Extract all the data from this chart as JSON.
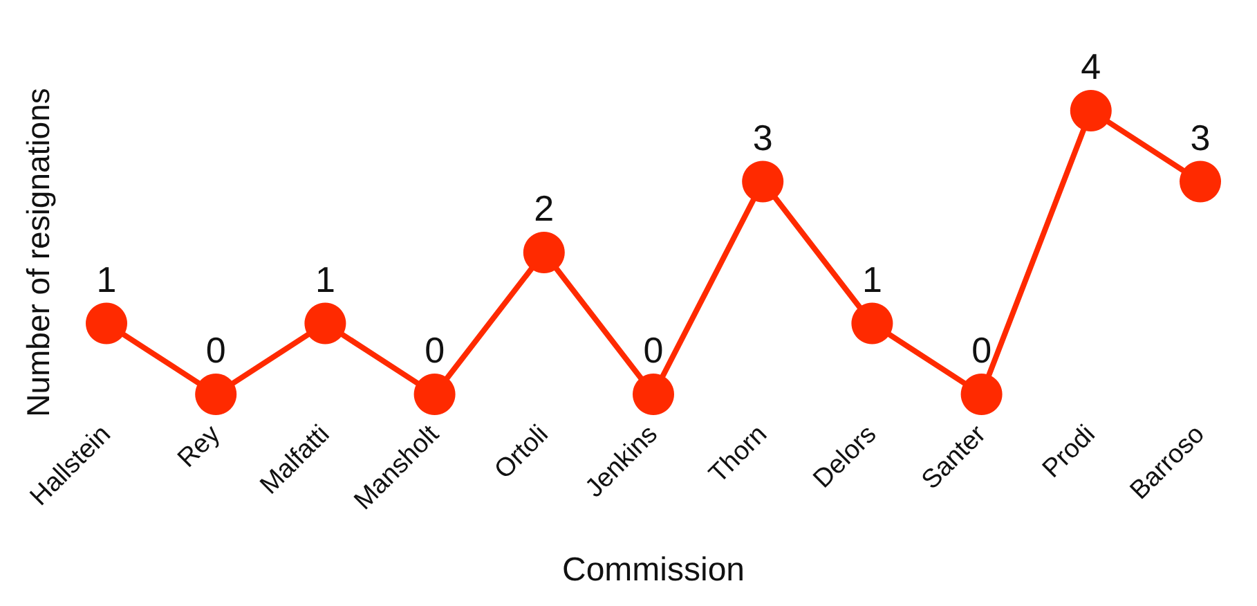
{
  "chart_data": {
    "type": "line",
    "xlabel": "Commission",
    "ylabel": "Number of resignations",
    "categories": [
      "Hallstein",
      "Rey",
      "Malfatti",
      "Mansholt",
      "Ortoli",
      "Jenkins",
      "Thorn",
      "Delors",
      "Santer",
      "Prodi",
      "Barroso"
    ],
    "values": [
      1,
      0,
      1,
      0,
      2,
      0,
      3,
      1,
      0,
      4,
      3
    ],
    "color": "#ff2a00",
    "marker": "circle",
    "line_style": "solid",
    "data_labels": true,
    "grid": false,
    "tick_labels": "x"
  }
}
